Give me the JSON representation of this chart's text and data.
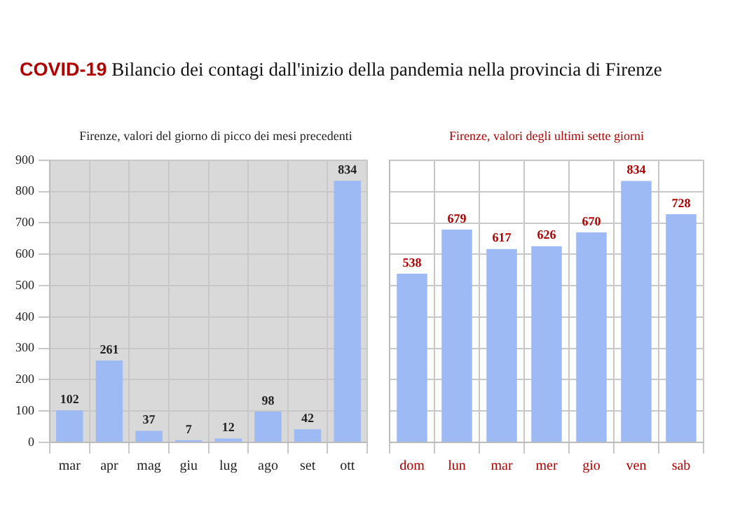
{
  "chart_data": [
    {
      "type": "bar",
      "title": "COVID-19 Bilancio dei contagi dall'inizio della pandemia nella provincia di Firenze",
      "subtitle": "Firenze, valori del giorno di picco dei mesi precedenti",
      "categories": [
        "mar",
        "apr",
        "mag",
        "giu",
        "lug",
        "ago",
        "set",
        "ott"
      ],
      "values": [
        102,
        261,
        37,
        7,
        12,
        98,
        42,
        834
      ],
      "color": "#9dbaf5",
      "ylim": [
        0,
        900
      ],
      "yticks": [
        0,
        100,
        200,
        300,
        400,
        500,
        600,
        700,
        800,
        900
      ],
      "grid": true,
      "data_labels": true
    },
    {
      "type": "bar",
      "subtitle": "Firenze, valori degli ultimi sette giorni",
      "categories": [
        "dom",
        "lun",
        "mar",
        "mer",
        "gio",
        "ven",
        "sab"
      ],
      "values": [
        538,
        679,
        617,
        626,
        670,
        834,
        728
      ],
      "color": "#9dbaf5",
      "ylim": [
        0,
        900
      ],
      "yticks": [
        0,
        100,
        200,
        300,
        400,
        500,
        600,
        700,
        800,
        900
      ],
      "grid": true,
      "data_labels": true,
      "tick_labels": "x"
    }
  ]
}
